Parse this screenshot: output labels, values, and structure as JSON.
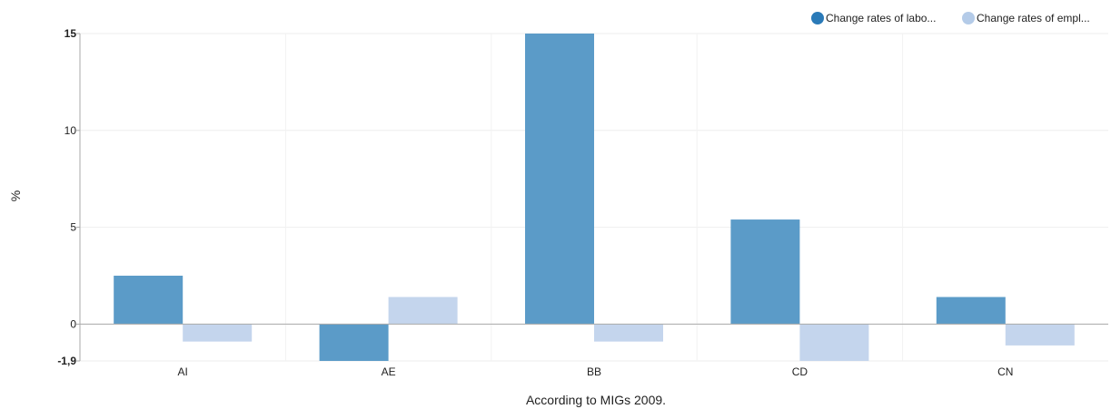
{
  "chart_data": {
    "type": "bar",
    "categories": [
      "AI",
      "AE",
      "BB",
      "CD",
      "CN"
    ],
    "series": [
      {
        "name": "Change rates of labo...",
        "values": [
          2.5,
          -1.9,
          15.0,
          5.4,
          1.4
        ]
      },
      {
        "name": "Change rates of empl...",
        "values": [
          -0.9,
          1.4,
          -0.9,
          -1.9,
          -1.1
        ]
      }
    ],
    "colors": [
      "#5b9bc8",
      "#c4d5ed"
    ],
    "legend_marker_colors": [
      "#2a7ab8",
      "#b4cbe8"
    ],
    "title": "",
    "xlabel": "According to MIGs 2009.",
    "ylabel": "%",
    "ylim": [
      -1.9,
      15
    ],
    "yticks": [
      {
        "value": 15,
        "label": "15",
        "bold": true
      },
      {
        "value": 10,
        "label": "10",
        "bold": false
      },
      {
        "value": 5,
        "label": "5",
        "bold": false
      },
      {
        "value": 0,
        "label": "0",
        "bold": false
      },
      {
        "value": -1.9,
        "label": "-1,9",
        "bold": true
      }
    ],
    "grid": true,
    "legend_position": "top-right"
  }
}
